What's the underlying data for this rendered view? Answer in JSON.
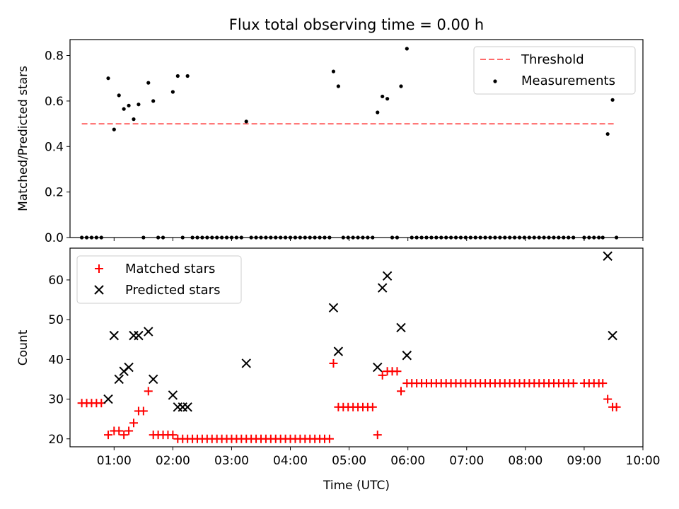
{
  "colors": {
    "threshold": "#ff6b6b",
    "measurement": "#000000",
    "matched": "#ff0000",
    "predicted": "#000000"
  },
  "chart_data": [
    {
      "type": "scatter",
      "title": "Flux total observing time = 0.00 h",
      "ylabel": "Matched/Predicted stars",
      "xlim": [
        "00:15",
        "10:00"
      ],
      "ylim": [
        0,
        0.87
      ],
      "yticks": [
        0.0,
        0.2,
        0.4,
        0.6,
        0.8
      ],
      "ytick_labels": [
        "0.0",
        "0.2",
        "0.4",
        "0.6",
        "0.8"
      ],
      "legend_position": "top-right",
      "threshold": {
        "name": "Threshold",
        "value": 0.5,
        "x_start": "00:27",
        "x_end": "09:32"
      },
      "series": [
        {
          "name": "Measurements",
          "points": [
            [
              "00:27",
              0
            ],
            [
              "00:32",
              0
            ],
            [
              "00:37",
              0
            ],
            [
              "00:42",
              0
            ],
            [
              "00:47",
              0
            ],
            [
              "00:54",
              0.7
            ],
            [
              "01:00",
              0.475
            ],
            [
              "01:05",
              0.625
            ],
            [
              "01:10",
              0.565
            ],
            [
              "01:15",
              0.58
            ],
            [
              "01:20",
              0.52
            ],
            [
              "01:25",
              0.585
            ],
            [
              "01:30",
              0
            ],
            [
              "01:35",
              0.68
            ],
            [
              "01:40",
              0.6
            ],
            [
              "01:45",
              0
            ],
            [
              "01:50",
              0
            ],
            [
              "02:00",
              0.64
            ],
            [
              "02:05",
              0.71
            ],
            [
              "02:10",
              0
            ],
            [
              "02:15",
              0.71
            ],
            [
              "02:20",
              0
            ],
            [
              "02:25",
              0
            ],
            [
              "02:30",
              0
            ],
            [
              "02:35",
              0
            ],
            [
              "02:40",
              0
            ],
            [
              "02:45",
              0
            ],
            [
              "02:50",
              0
            ],
            [
              "02:55",
              0
            ],
            [
              "03:00",
              0
            ],
            [
              "03:05",
              0
            ],
            [
              "03:10",
              0
            ],
            [
              "03:15",
              0.51
            ],
            [
              "03:20",
              0
            ],
            [
              "03:25",
              0
            ],
            [
              "03:30",
              0
            ],
            [
              "03:35",
              0
            ],
            [
              "03:40",
              0
            ],
            [
              "03:45",
              0
            ],
            [
              "03:50",
              0
            ],
            [
              "03:55",
              0
            ],
            [
              "04:00",
              0
            ],
            [
              "04:05",
              0
            ],
            [
              "04:10",
              0
            ],
            [
              "04:15",
              0
            ],
            [
              "04:20",
              0
            ],
            [
              "04:25",
              0
            ],
            [
              "04:30",
              0
            ],
            [
              "04:35",
              0
            ],
            [
              "04:40",
              0
            ],
            [
              "04:44",
              0.73
            ],
            [
              "04:49",
              0.665
            ],
            [
              "04:54",
              0
            ],
            [
              "04:59",
              0
            ],
            [
              "05:04",
              0
            ],
            [
              "05:09",
              0
            ],
            [
              "05:14",
              0
            ],
            [
              "05:19",
              0
            ],
            [
              "05:24",
              0
            ],
            [
              "05:29",
              0.55
            ],
            [
              "05:34",
              0.62
            ],
            [
              "05:39",
              0.61
            ],
            [
              "05:44",
              0
            ],
            [
              "05:49",
              0
            ],
            [
              "05:53",
              0.665
            ],
            [
              "05:59",
              0.83
            ],
            [
              "06:04",
              0
            ],
            [
              "06:09",
              0
            ],
            [
              "06:14",
              0
            ],
            [
              "06:19",
              0
            ],
            [
              "06:24",
              0
            ],
            [
              "06:29",
              0
            ],
            [
              "06:34",
              0
            ],
            [
              "06:39",
              0
            ],
            [
              "06:44",
              0
            ],
            [
              "06:49",
              0
            ],
            [
              "06:54",
              0
            ],
            [
              "06:59",
              0
            ],
            [
              "07:04",
              0
            ],
            [
              "07:09",
              0
            ],
            [
              "07:14",
              0
            ],
            [
              "07:19",
              0
            ],
            [
              "07:24",
              0
            ],
            [
              "07:29",
              0
            ],
            [
              "07:34",
              0
            ],
            [
              "07:39",
              0
            ],
            [
              "07:44",
              0
            ],
            [
              "07:49",
              0
            ],
            [
              "07:54",
              0
            ],
            [
              "07:59",
              0
            ],
            [
              "08:04",
              0
            ],
            [
              "08:09",
              0
            ],
            [
              "08:14",
              0
            ],
            [
              "08:19",
              0
            ],
            [
              "08:24",
              0
            ],
            [
              "08:29",
              0
            ],
            [
              "08:34",
              0
            ],
            [
              "08:39",
              0
            ],
            [
              "08:44",
              0
            ],
            [
              "08:49",
              0
            ],
            [
              "09:00",
              0
            ],
            [
              "09:05",
              0
            ],
            [
              "09:10",
              0
            ],
            [
              "09:15",
              0
            ],
            [
              "09:19",
              0
            ],
            [
              "09:24",
              0.455
            ],
            [
              "09:29",
              0.605
            ],
            [
              "09:33",
              0
            ]
          ]
        }
      ]
    },
    {
      "type": "scatter",
      "xlabel": "Time (UTC)",
      "ylabel": "Count",
      "xlim": [
        "00:15",
        "10:00"
      ],
      "ylim": [
        18,
        68
      ],
      "yticks": [
        20,
        30,
        40,
        50,
        60
      ],
      "ytick_labels": [
        "20",
        "30",
        "40",
        "50",
        "60"
      ],
      "xtick_labels": [
        "01:00",
        "02:00",
        "03:00",
        "04:00",
        "05:00",
        "06:00",
        "07:00",
        "08:00",
        "09:00",
        "10:00"
      ],
      "legend_position": "top-left",
      "series": [
        {
          "name": "Matched stars",
          "marker": "plus",
          "points": [
            [
              "00:27",
              29
            ],
            [
              "00:32",
              29
            ],
            [
              "00:37",
              29
            ],
            [
              "00:42",
              29
            ],
            [
              "00:47",
              29
            ],
            [
              "00:54",
              21
            ],
            [
              "01:00",
              22
            ],
            [
              "01:05",
              22
            ],
            [
              "01:10",
              21
            ],
            [
              "01:15",
              22
            ],
            [
              "01:20",
              24
            ],
            [
              "01:25",
              27
            ],
            [
              "01:30",
              27
            ],
            [
              "01:35",
              32
            ],
            [
              "01:40",
              21
            ],
            [
              "01:45",
              21
            ],
            [
              "01:50",
              21
            ],
            [
              "01:55",
              21
            ],
            [
              "02:00",
              21
            ],
            [
              "02:05",
              20
            ],
            [
              "02:10",
              20
            ],
            [
              "02:15",
              20
            ],
            [
              "02:20",
              20
            ],
            [
              "02:25",
              20
            ],
            [
              "02:30",
              20
            ],
            [
              "02:35",
              20
            ],
            [
              "02:40",
              20
            ],
            [
              "02:45",
              20
            ],
            [
              "02:50",
              20
            ],
            [
              "02:55",
              20
            ],
            [
              "03:00",
              20
            ],
            [
              "03:05",
              20
            ],
            [
              "03:10",
              20
            ],
            [
              "03:15",
              20
            ],
            [
              "03:20",
              20
            ],
            [
              "03:25",
              20
            ],
            [
              "03:30",
              20
            ],
            [
              "03:35",
              20
            ],
            [
              "03:40",
              20
            ],
            [
              "03:45",
              20
            ],
            [
              "03:50",
              20
            ],
            [
              "03:55",
              20
            ],
            [
              "04:00",
              20
            ],
            [
              "04:05",
              20
            ],
            [
              "04:10",
              20
            ],
            [
              "04:15",
              20
            ],
            [
              "04:20",
              20
            ],
            [
              "04:25",
              20
            ],
            [
              "04:30",
              20
            ],
            [
              "04:35",
              20
            ],
            [
              "04:40",
              20
            ],
            [
              "04:44",
              39
            ],
            [
              "04:49",
              28
            ],
            [
              "04:54",
              28
            ],
            [
              "04:59",
              28
            ],
            [
              "05:04",
              28
            ],
            [
              "05:09",
              28
            ],
            [
              "05:14",
              28
            ],
            [
              "05:19",
              28
            ],
            [
              "05:24",
              28
            ],
            [
              "05:29",
              21
            ],
            [
              "05:34",
              36
            ],
            [
              "05:39",
              37
            ],
            [
              "05:44",
              37
            ],
            [
              "05:49",
              37
            ],
            [
              "05:53",
              32
            ],
            [
              "05:59",
              34
            ],
            [
              "06:04",
              34
            ],
            [
              "06:09",
              34
            ],
            [
              "06:14",
              34
            ],
            [
              "06:19",
              34
            ],
            [
              "06:24",
              34
            ],
            [
              "06:29",
              34
            ],
            [
              "06:34",
              34
            ],
            [
              "06:39",
              34
            ],
            [
              "06:44",
              34
            ],
            [
              "06:49",
              34
            ],
            [
              "06:54",
              34
            ],
            [
              "06:59",
              34
            ],
            [
              "07:04",
              34
            ],
            [
              "07:09",
              34
            ],
            [
              "07:14",
              34
            ],
            [
              "07:19",
              34
            ],
            [
              "07:24",
              34
            ],
            [
              "07:29",
              34
            ],
            [
              "07:34",
              34
            ],
            [
              "07:39",
              34
            ],
            [
              "07:44",
              34
            ],
            [
              "07:49",
              34
            ],
            [
              "07:54",
              34
            ],
            [
              "07:59",
              34
            ],
            [
              "08:04",
              34
            ],
            [
              "08:09",
              34
            ],
            [
              "08:14",
              34
            ],
            [
              "08:19",
              34
            ],
            [
              "08:24",
              34
            ],
            [
              "08:29",
              34
            ],
            [
              "08:34",
              34
            ],
            [
              "08:39",
              34
            ],
            [
              "08:44",
              34
            ],
            [
              "08:49",
              34
            ],
            [
              "09:00",
              34
            ],
            [
              "09:05",
              34
            ],
            [
              "09:10",
              34
            ],
            [
              "09:15",
              34
            ],
            [
              "09:19",
              34
            ],
            [
              "09:24",
              30
            ],
            [
              "09:29",
              28
            ],
            [
              "09:33",
              28
            ]
          ]
        },
        {
          "name": "Predicted stars",
          "marker": "x",
          "points": [
            [
              "00:54",
              30
            ],
            [
              "01:00",
              46
            ],
            [
              "01:05",
              35
            ],
            [
              "01:10",
              37
            ],
            [
              "01:15",
              38
            ],
            [
              "01:20",
              46
            ],
            [
              "01:25",
              46
            ],
            [
              "01:35",
              47
            ],
            [
              "01:40",
              35
            ],
            [
              "02:00",
              31
            ],
            [
              "02:05",
              28
            ],
            [
              "02:10",
              28
            ],
            [
              "02:15",
              28
            ],
            [
              "03:15",
              39
            ],
            [
              "04:44",
              53
            ],
            [
              "04:49",
              42
            ],
            [
              "05:29",
              38
            ],
            [
              "05:34",
              58
            ],
            [
              "05:39",
              61
            ],
            [
              "05:53",
              48
            ],
            [
              "05:59",
              41
            ],
            [
              "09:24",
              66
            ],
            [
              "09:29",
              46
            ]
          ]
        }
      ]
    }
  ]
}
